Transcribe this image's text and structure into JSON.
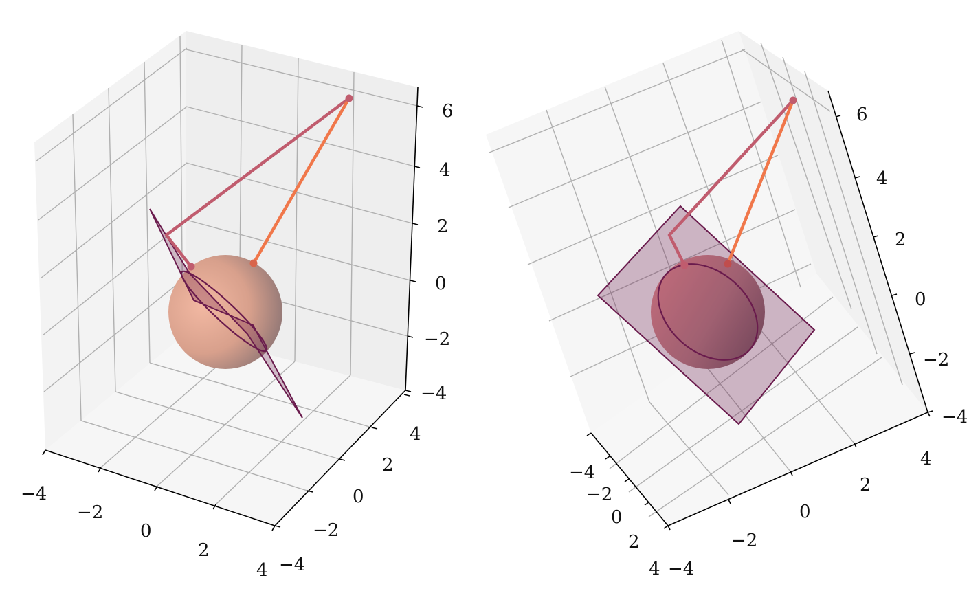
{
  "chart_data": [
    {
      "type": "3d-surface",
      "title": "",
      "xlabel": "",
      "ylabel": "",
      "zlabel": "",
      "xlim": [
        -4,
        4
      ],
      "ylim": [
        -4,
        4
      ],
      "zlim": [
        -4,
        6
      ],
      "grid": true,
      "axes": {
        "x_ticks": [
          "−4",
          "−2",
          "0",
          "2",
          "4"
        ],
        "y_ticks": [
          "−4",
          "−2",
          "0",
          "2",
          "4"
        ],
        "z_ticks": [
          "−4",
          "−2",
          "0",
          "2",
          "4",
          "6"
        ]
      },
      "sphere": {
        "center": [
          0,
          0,
          0
        ],
        "radius": 2,
        "color": "#e89a86"
      },
      "plane": {
        "color": "#6a1b4d",
        "fill_opacity": 0.3
      },
      "intersection_circle": {
        "color": "#6a1b4d"
      },
      "lines": [
        {
          "color": "#c05c6e",
          "points": [
            [
              4,
              4,
              6
            ],
            [
              -2,
              -1,
              2
            ],
            [
              -1.5,
              -0.5,
              1
            ]
          ]
        },
        {
          "color": "#f0774a",
          "points": [
            [
              4,
              4,
              6
            ],
            [
              0.5,
              1,
              1.5
            ]
          ]
        }
      ]
    },
    {
      "type": "3d-surface",
      "title": "",
      "xlabel": "",
      "ylabel": "",
      "zlabel": "",
      "xlim": [
        -4,
        4
      ],
      "ylim": [
        -4,
        4
      ],
      "zlim": [
        -4,
        6
      ],
      "grid": true,
      "axes": {
        "x_ticks": [
          "−4",
          "−2",
          "0",
          "2",
          "4"
        ],
        "y_ticks": [
          "−4",
          "−2",
          "0",
          "2",
          "4"
        ],
        "z_ticks": [
          "−4",
          "−2",
          "0",
          "2",
          "4",
          "6"
        ]
      },
      "sphere": {
        "center": [
          0,
          0,
          0
        ],
        "radius": 2,
        "color": "#d98a8a"
      },
      "plane": {
        "color": "#6a1b4d",
        "fill_opacity": 0.3
      },
      "intersection_circle": {
        "color": "#6a1b4d"
      },
      "lines": [
        {
          "color": "#c05c6e",
          "points": [
            [
              4,
              4,
              6
            ],
            [
              -2,
              -1,
              2
            ],
            [
              -1.5,
              -0.5,
              1
            ]
          ]
        },
        {
          "color": "#f0774a",
          "points": [
            [
              4,
              4,
              6
            ],
            [
              0.5,
              1,
              1.5
            ]
          ]
        }
      ]
    }
  ]
}
